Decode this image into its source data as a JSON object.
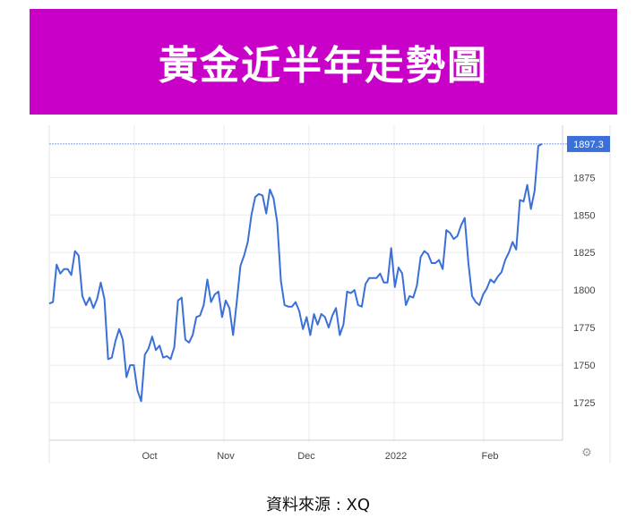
{
  "banner": {
    "title": "黃金近半年走勢圖",
    "color": "#c800c8"
  },
  "source": {
    "text": "資料來源 : XQ"
  },
  "settings_icon": {
    "name": "gear-icon",
    "glyph": "⚙"
  },
  "chart_data": {
    "type": "line",
    "title": "",
    "xlabel": "",
    "ylabel": "",
    "x_tick_labels": [
      "Oct",
      "Nov",
      "Dec",
      "2022",
      "Feb"
    ],
    "y_ticks": [
      1725,
      1750,
      1775,
      1800,
      1825,
      1850,
      1875
    ],
    "ylim": [
      1700,
      1905
    ],
    "grid": true,
    "last_value_label": "1897.3",
    "line_color": "#3a70d8",
    "series": [
      {
        "name": "",
        "values": [
          1791,
          1792,
          1817,
          1811,
          1814,
          1814,
          1810,
          1826,
          1823,
          1796,
          1790,
          1795,
          1788,
          1794,
          1805,
          1794,
          1754,
          1755,
          1766,
          1774,
          1767,
          1742,
          1750,
          1750,
          1733,
          1726,
          1757,
          1761,
          1769,
          1760,
          1763,
          1755,
          1756,
          1754,
          1762,
          1793,
          1795,
          1767,
          1765,
          1770,
          1782,
          1783,
          1790,
          1807,
          1792,
          1797,
          1799,
          1782,
          1793,
          1788,
          1770,
          1792,
          1816,
          1823,
          1832,
          1850,
          1862,
          1864,
          1863,
          1851,
          1867,
          1861,
          1845,
          1806,
          1790,
          1789,
          1789,
          1792,
          1786,
          1774,
          1782,
          1770,
          1784,
          1777,
          1784,
          1782,
          1775,
          1783,
          1788,
          1770,
          1777,
          1799,
          1798,
          1800,
          1790,
          1789,
          1804,
          1808,
          1808,
          1808,
          1811,
          1805,
          1805,
          1828,
          1802,
          1815,
          1811,
          1790,
          1796,
          1795,
          1803,
          1822,
          1826,
          1824,
          1818,
          1818,
          1820,
          1814,
          1840,
          1838,
          1834,
          1836,
          1843,
          1848,
          1818,
          1796,
          1792,
          1790,
          1797,
          1801,
          1807,
          1805,
          1809,
          1812,
          1820,
          1825,
          1832,
          1827,
          1860,
          1859,
          1870,
          1854,
          1866,
          1896,
          1897.3
        ]
      }
    ]
  }
}
